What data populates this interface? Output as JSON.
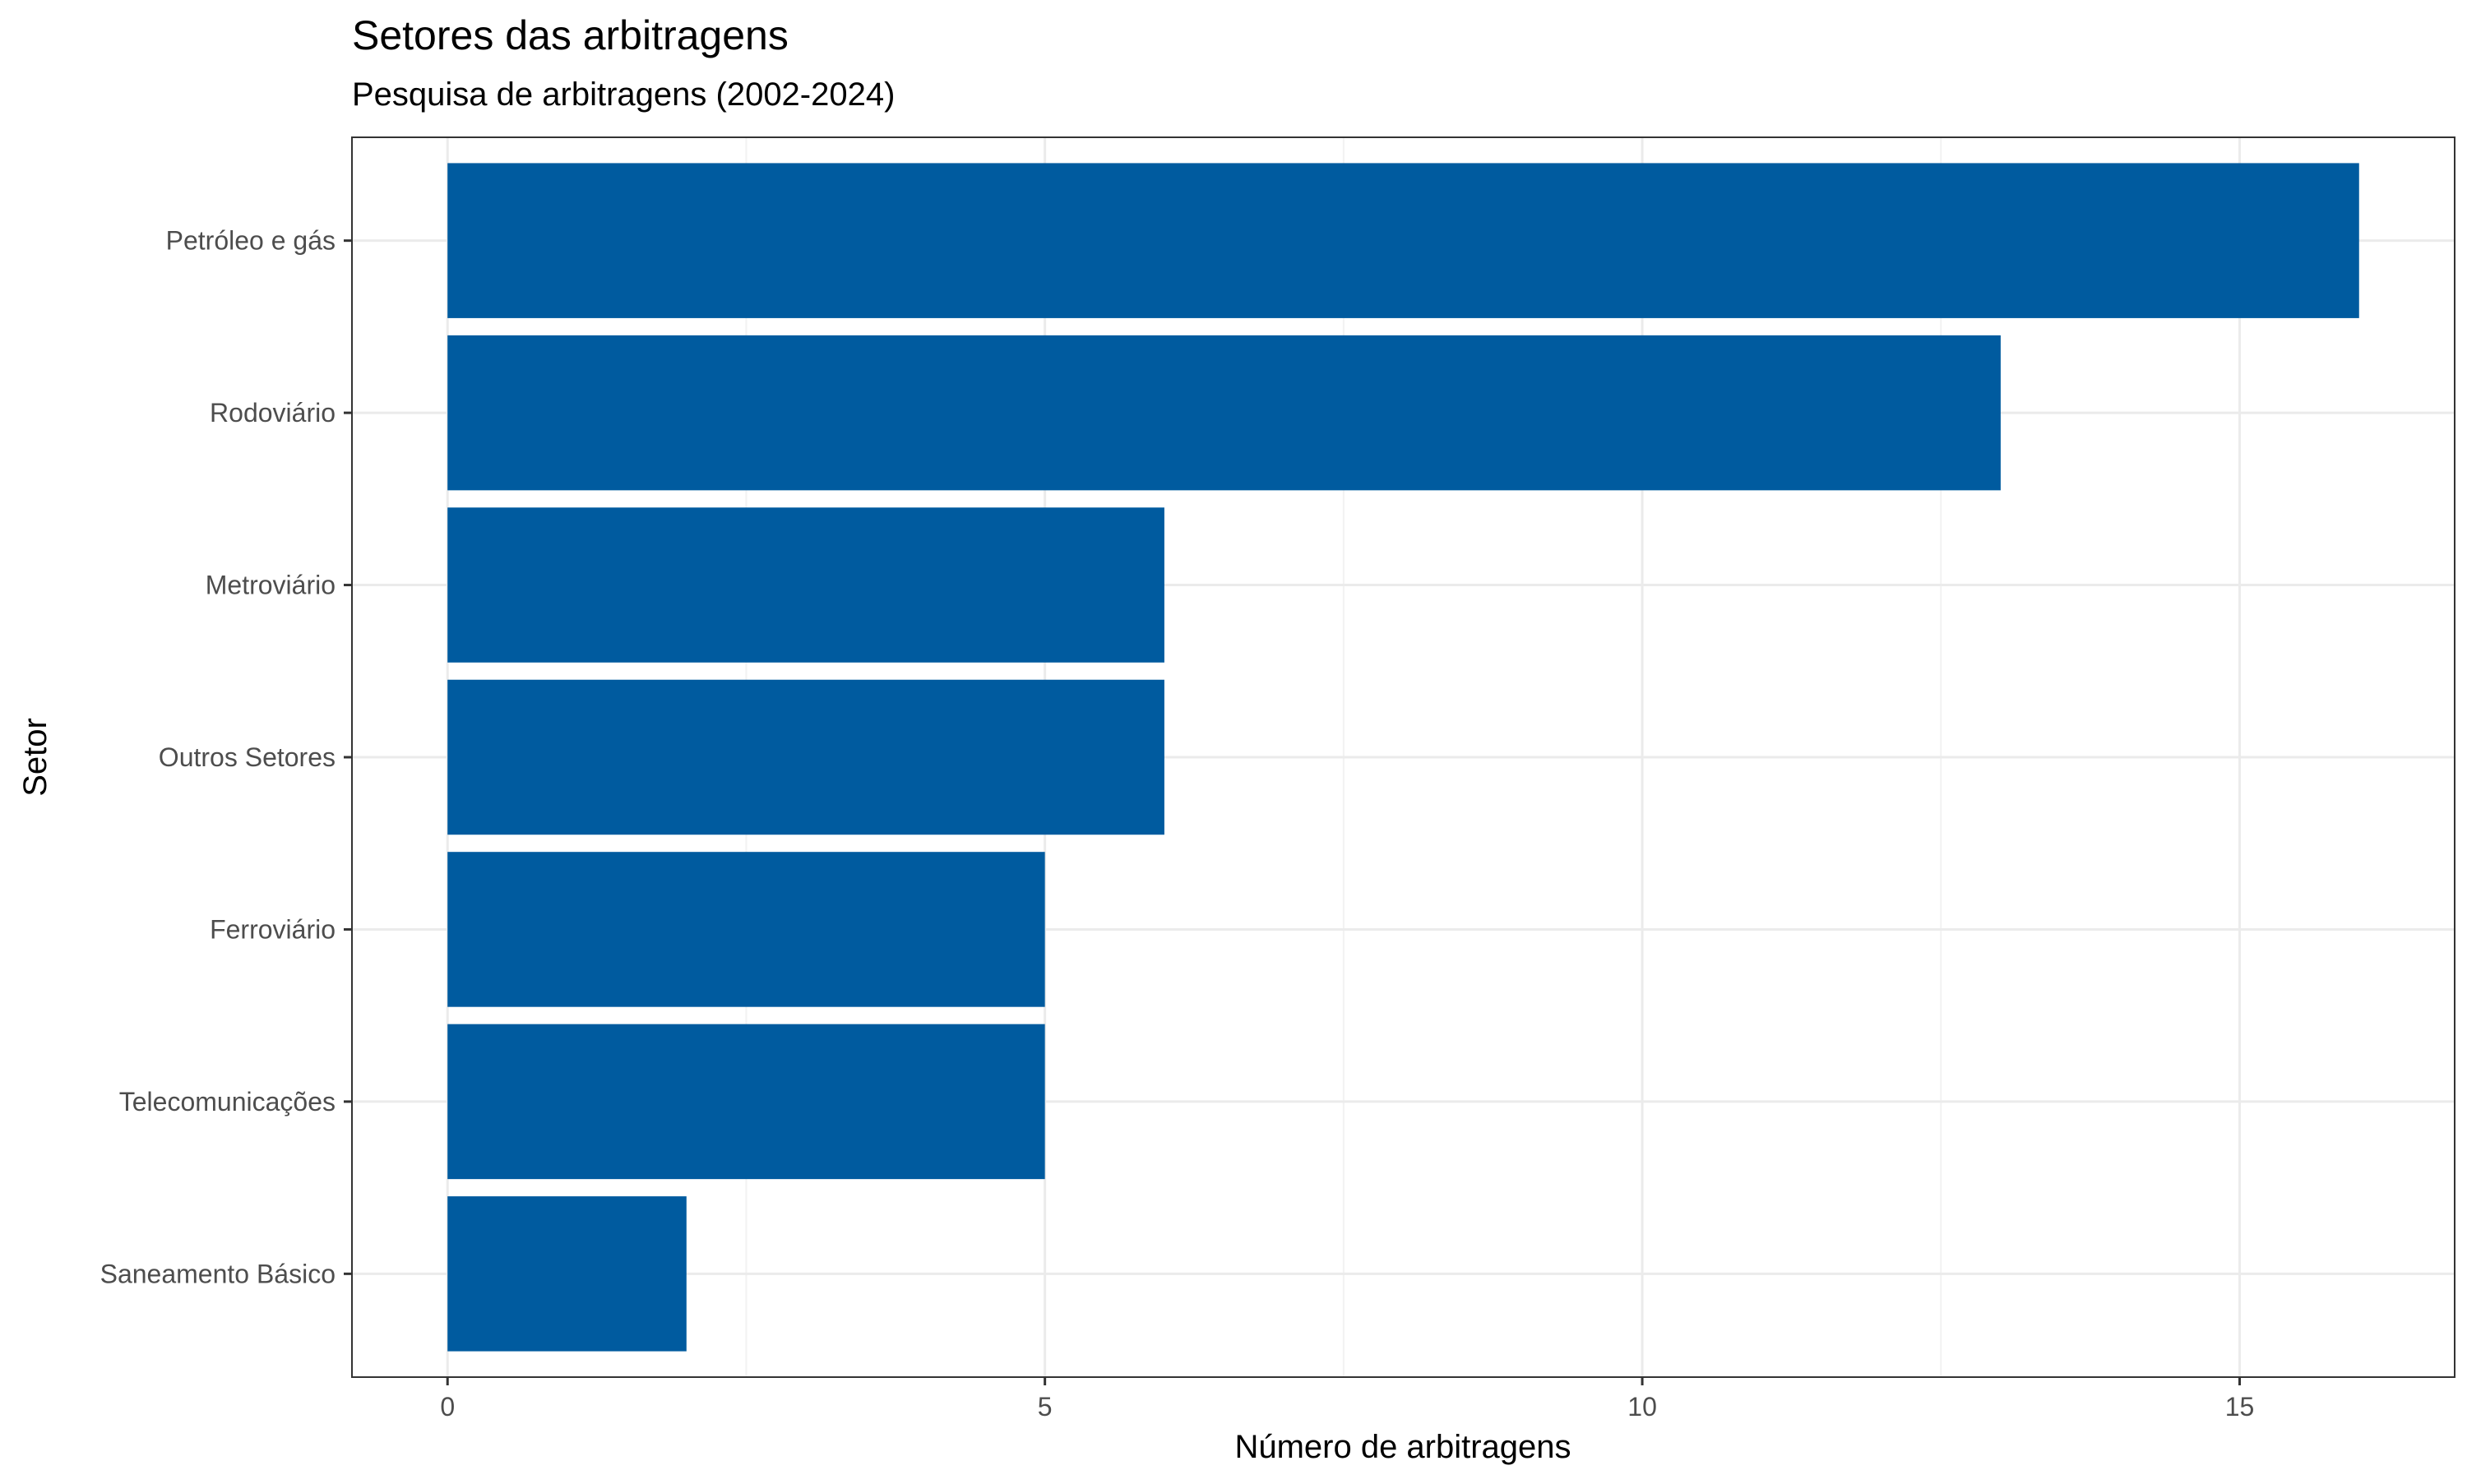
{
  "chart_data": {
    "type": "bar",
    "orientation": "horizontal",
    "title": "Setores das arbitragens",
    "subtitle": "Pesquisa de arbitragens (2002-2024)",
    "xlabel": "Número de arbitragens",
    "ylabel": "Setor",
    "categories": [
      "Petróleo e gás",
      "Rodoviário",
      "Metroviário",
      "Outros Setores",
      "Ferroviário",
      "Telecomunicações",
      "Saneamento Básico"
    ],
    "values": [
      16,
      13,
      6,
      6,
      5,
      5,
      2
    ],
    "xlim": [
      -0.8,
      16.8
    ],
    "x_ticks": [
      0,
      5,
      10,
      15
    ],
    "x_tick_labels": [
      "0",
      "5",
      "10",
      "15"
    ],
    "grid": true,
    "legend": "none",
    "colors": {
      "bar": "#005B9F",
      "grid_major": "#EBEBEB",
      "grid_minor": "#F2F2F2",
      "panel_border": "#333333",
      "tick_text": "#4D4D4D"
    }
  }
}
